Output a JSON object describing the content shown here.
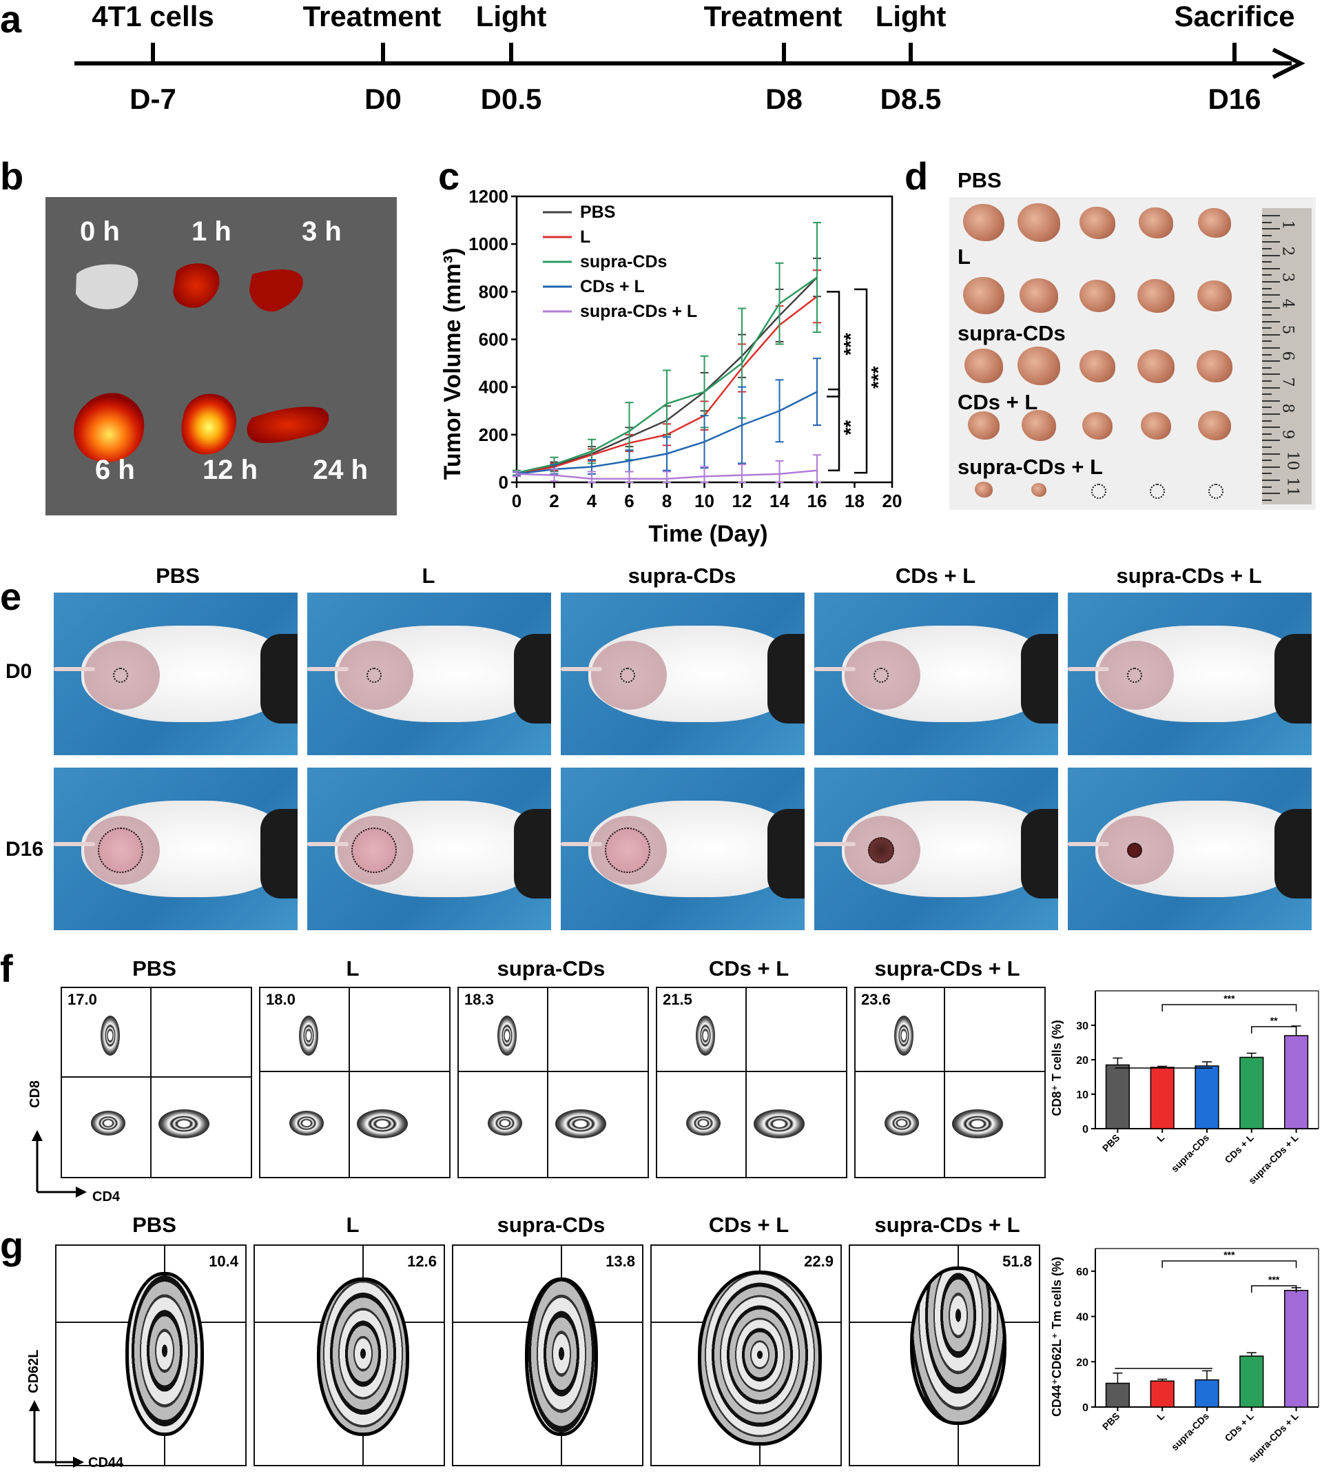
{
  "panel_labels": [
    "a",
    "b",
    "c",
    "d",
    "e",
    "f",
    "g"
  ],
  "timeline": {
    "events": [
      {
        "top": "4T1 cells",
        "bottom": "D-7"
      },
      {
        "top": "Treatment",
        "bottom": "D0"
      },
      {
        "top": "Light",
        "bottom": "D0.5"
      },
      {
        "top": "Treatment",
        "bottom": "D8"
      },
      {
        "top": "Light",
        "bottom": "D8.5"
      },
      {
        "top": "Sacrifice",
        "bottom": "D16"
      }
    ]
  },
  "imaging": {
    "time_labels": [
      "0 h",
      "1 h",
      "3 h",
      "6 h",
      "12 h",
      "24 h"
    ]
  },
  "groups": [
    "PBS",
    "L",
    "supra-CDs",
    "CDs + L",
    "supra-CDs + L"
  ],
  "tumor_photos": {
    "ruler_numbers": [
      "1",
      "2",
      "3",
      "4",
      "5",
      "6",
      "7",
      "8",
      "9",
      "10",
      "11"
    ]
  },
  "mouse_photos": {
    "rows": [
      "D0",
      "D16"
    ]
  },
  "flow": {
    "cd8_values": [
      "17.0",
      "18.0",
      "18.3",
      "21.5",
      "23.6"
    ],
    "cd8_axes": {
      "y": "CD8",
      "x": "CD4"
    },
    "tm_values": [
      "10.4",
      "12.6",
      "13.8",
      "22.9",
      "51.8"
    ],
    "tm_axes": {
      "y": "CD62L",
      "x": "CD44"
    }
  },
  "chart_data": [
    {
      "id": "c",
      "type": "line",
      "xlabel": "Time (Day)",
      "ylabel": "Tumor Volume (mm³)",
      "xlim": [
        0,
        20
      ],
      "ylim": [
        0,
        1200
      ],
      "xticks": [
        0,
        2,
        4,
        6,
        8,
        10,
        12,
        14,
        16,
        18,
        20
      ],
      "yticks": [
        0,
        200,
        400,
        600,
        800,
        1000,
        1200
      ],
      "x": [
        0,
        2,
        4,
        6,
        8,
        10,
        12,
        14,
        16
      ],
      "legend_position": "top-left",
      "series": [
        {
          "name": "PBS",
          "color": "#404040",
          "values": [
            38,
            70,
            120,
            190,
            260,
            380,
            530,
            700,
            860
          ],
          "err": [
            8,
            15,
            30,
            40,
            60,
            80,
            90,
            110,
            80
          ]
        },
        {
          "name": "L",
          "color": "#d9302c",
          "values": [
            35,
            65,
            115,
            165,
            200,
            280,
            480,
            660,
            780
          ],
          "err": [
            8,
            15,
            25,
            35,
            45,
            60,
            100,
            80,
            110
          ]
        },
        {
          "name": "supra-CDs",
          "color": "#2e9960",
          "values": [
            40,
            75,
            130,
            215,
            330,
            380,
            500,
            750,
            860
          ],
          "err": [
            10,
            30,
            50,
            120,
            140,
            150,
            230,
            170,
            230
          ]
        },
        {
          "name": "CDs + L",
          "color": "#2266b0",
          "values": [
            35,
            55,
            65,
            90,
            120,
            170,
            240,
            300,
            380
          ],
          "err": [
            8,
            20,
            30,
            45,
            70,
            110,
            160,
            130,
            140
          ]
        },
        {
          "name": "supra-CDs + L",
          "color": "#b07cd6",
          "values": [
            35,
            30,
            15,
            15,
            15,
            25,
            30,
            35,
            50
          ],
          "err": [
            10,
            25,
            30,
            30,
            30,
            40,
            45,
            55,
            65
          ]
        }
      ],
      "significance": [
        "**",
        "***",
        "***"
      ]
    },
    {
      "id": "f",
      "type": "bar",
      "ylabel": "CD8⁺ T cells (%)",
      "ylim": [
        0,
        40
      ],
      "yticks": [
        0,
        10,
        20,
        30
      ],
      "categories": [
        "PBS",
        "L",
        "supra-CDs",
        "CDs + L",
        "supra-CDs + L"
      ],
      "values": [
        18.5,
        17.8,
        18.2,
        20.7,
        27.0
      ],
      "err": [
        2.0,
        0.3,
        1.2,
        1.2,
        2.8
      ],
      "colors": [
        "#595959",
        "#ee2b2b",
        "#1f6fd8",
        "#2aa15a",
        "#a26ad6"
      ],
      "significance": [
        "***",
        "**"
      ]
    },
    {
      "id": "g",
      "type": "bar",
      "ylabel": "CD44⁺CD62L⁺ Tm cells (%)",
      "ylim": [
        0,
        70
      ],
      "yticks": [
        0,
        20,
        40,
        60
      ],
      "categories": [
        "PBS",
        "L",
        "supra-CDs",
        "CDs + L",
        "supra-CDs + L"
      ],
      "values": [
        10.5,
        11.5,
        12.0,
        22.5,
        51.5
      ],
      "err": [
        4.5,
        0.8,
        4.0,
        1.5,
        1.2
      ],
      "colors": [
        "#595959",
        "#ee2b2b",
        "#1f6fd8",
        "#2aa15a",
        "#a26ad6"
      ],
      "significance": [
        "***",
        "***"
      ]
    }
  ]
}
